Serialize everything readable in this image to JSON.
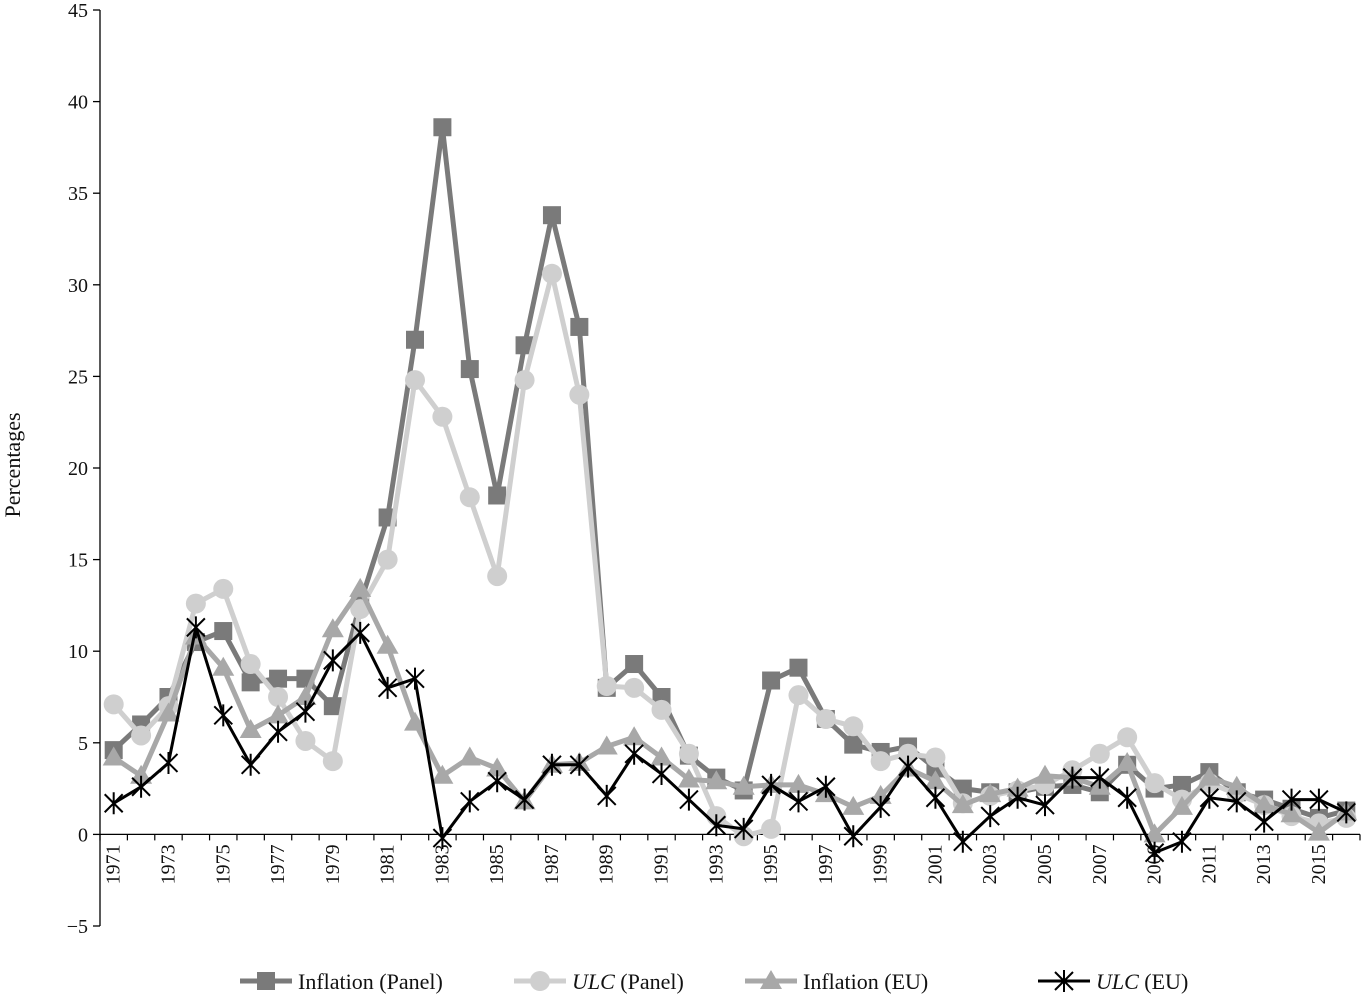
{
  "chart_data": {
    "type": "line",
    "title": "",
    "xlabel": "",
    "ylabel": "Percentages",
    "ylim": [
      -5,
      45
    ],
    "y_ticks": [
      -5,
      0,
      5,
      10,
      15,
      20,
      25,
      30,
      35,
      40,
      45
    ],
    "grid": false,
    "legend_position": "bottom",
    "x": [
      1971,
      1972,
      1973,
      1974,
      1975,
      1976,
      1977,
      1978,
      1979,
      1980,
      1981,
      1982,
      1983,
      1984,
      1985,
      1986,
      1987,
      1988,
      1989,
      1990,
      1991,
      1992,
      1993,
      1994,
      1995,
      1996,
      1997,
      1998,
      1999,
      2000,
      2001,
      2002,
      2003,
      2004,
      2005,
      2006,
      2007,
      2008,
      2009,
      2010,
      2011,
      2012,
      2013,
      2014,
      2015,
      2016
    ],
    "x_tick_labels": [
      "1971",
      "1973",
      "1975",
      "1977",
      "1979",
      "1981",
      "1983",
      "1985",
      "1987",
      "1989",
      "1991",
      "1993",
      "1995",
      "1997",
      "1999",
      "2001",
      "2003",
      "2005",
      "2007",
      "2009",
      "2011",
      "2013",
      "2015"
    ],
    "series": [
      {
        "name": "Inflation (Panel)",
        "legend_italic": "",
        "legend_rest": "Inflation (Panel)",
        "color": "#7a7a7a",
        "marker": "square",
        "values": [
          4.6,
          6.0,
          7.5,
          10.5,
          11.1,
          8.3,
          8.5,
          8.5,
          7.0,
          12.6,
          17.3,
          27.0,
          38.6,
          25.4,
          18.5,
          26.7,
          33.8,
          27.7,
          8.0,
          9.3,
          7.5,
          4.3,
          3.1,
          2.4,
          8.4,
          9.1,
          6.3,
          4.9,
          4.5,
          4.8,
          3.6,
          2.5,
          2.3,
          2.3,
          2.6,
          2.7,
          2.3,
          3.8,
          2.5,
          2.7,
          3.4,
          2.3,
          1.9,
          1.4,
          0.9,
          1.3
        ]
      },
      {
        "name": "ULC (Panel)",
        "legend_italic": "ULC",
        "legend_rest": " (Panel)",
        "color": "#cfcfcf",
        "marker": "circle",
        "values": [
          7.1,
          5.4,
          7.0,
          12.6,
          13.4,
          9.3,
          7.5,
          5.1,
          4.0,
          12.3,
          15.0,
          24.8,
          22.8,
          18.4,
          14.1,
          24.8,
          30.6,
          24.0,
          8.1,
          8.0,
          6.8,
          4.4,
          1.0,
          -0.1,
          0.3,
          7.6,
          6.3,
          5.9,
          4.0,
          4.4,
          4.2,
          1.7,
          2.1,
          2.4,
          2.7,
          3.5,
          4.4,
          5.3,
          2.8,
          1.9,
          2.8,
          2.2,
          1.6,
          1.0,
          0.6,
          0.9
        ]
      },
      {
        "name": "Inflation (EU)",
        "legend_italic": "",
        "legend_rest": "Inflation (EU)",
        "color": "#a8a8a8",
        "marker": "triangle",
        "values": [
          4.2,
          3.2,
          6.6,
          10.8,
          9.1,
          5.7,
          6.5,
          7.5,
          11.2,
          13.4,
          10.3,
          6.1,
          3.2,
          4.2,
          3.6,
          1.8,
          3.8,
          3.9,
          4.8,
          5.3,
          4.2,
          3.0,
          2.9,
          2.6,
          2.7,
          2.7,
          2.2,
          1.5,
          2.1,
          3.6,
          2.9,
          1.6,
          2.2,
          2.5,
          3.2,
          3.1,
          2.6,
          3.9,
          0.0,
          1.5,
          3.1,
          2.6,
          1.6,
          1.1,
          0.1,
          1.2
        ]
      },
      {
        "name": "ULC (EU)",
        "legend_italic": "ULC",
        "legend_rest": " (EU)",
        "color": "#000000",
        "marker": "asterisk",
        "values": [
          1.7,
          2.6,
          3.9,
          11.3,
          6.5,
          3.8,
          5.6,
          6.7,
          9.5,
          11.0,
          8.0,
          8.5,
          -0.2,
          1.8,
          2.9,
          1.9,
          3.8,
          3.8,
          2.1,
          4.4,
          3.3,
          1.9,
          0.5,
          0.3,
          2.7,
          1.8,
          2.6,
          -0.1,
          1.5,
          3.7,
          2.0,
          -0.4,
          1.0,
          2.0,
          1.6,
          3.1,
          3.1,
          2.0,
          -1.0,
          -0.4,
          2.0,
          1.8,
          0.7,
          1.9,
          1.9,
          1.2
        ]
      }
    ]
  }
}
